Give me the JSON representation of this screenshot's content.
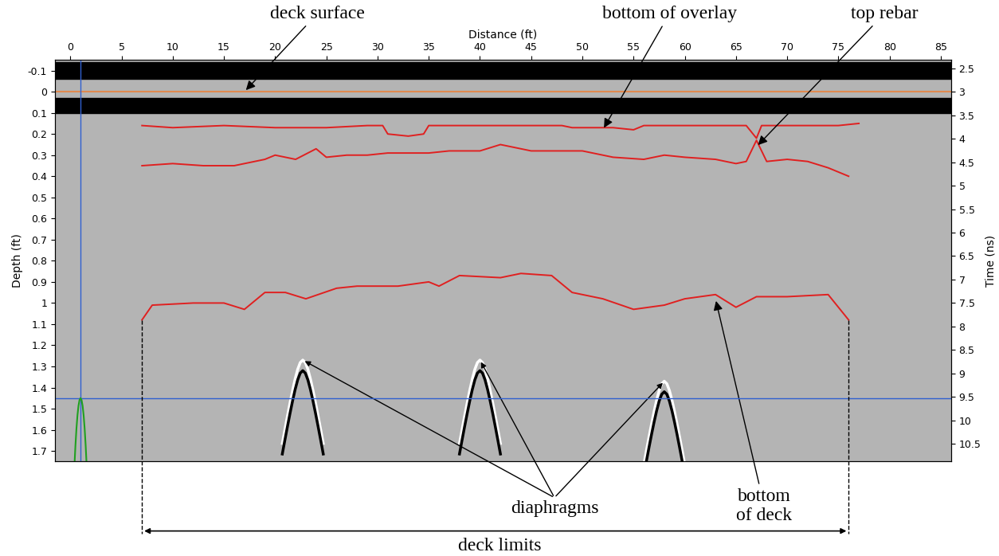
{
  "chart_data": {
    "type": "radargram",
    "xlabel": "Distance (ft)",
    "ylabel": "Depth (ft)",
    "y2label": "Time (ns)",
    "xlim": [
      -1.5,
      86
    ],
    "xticks": [
      0,
      5,
      10,
      15,
      20,
      25,
      30,
      35,
      40,
      45,
      50,
      55,
      60,
      65,
      70,
      75,
      80,
      85
    ],
    "ylim": [
      1.75,
      -0.15
    ],
    "yticks": [
      -0.1,
      0,
      0.1,
      0.2,
      0.3,
      0.4,
      0.5,
      0.6,
      0.7,
      0.8,
      0.9,
      1,
      1.1,
      1.2,
      1.3,
      1.4,
      1.5,
      1.6,
      1.7
    ],
    "y2lim": [
      10.875,
      2.325
    ],
    "y2ticks": [
      2.5,
      3,
      3.5,
      4,
      4.5,
      5,
      5.5,
      6,
      6.5,
      7,
      7.5,
      8,
      8.5,
      9,
      9.5,
      10,
      10.5
    ],
    "grid": false,
    "direct_wave_bands": [
      [
        -0.14,
        -0.06
      ],
      [
        0.03,
        0.1
      ]
    ],
    "deck_surface": {
      "name": "deck surface",
      "color": "#e08a50",
      "depth": 0,
      "label_x": 17
    },
    "series": [
      {
        "name": "bottom of overlay",
        "color": "#e02020",
        "label_x": 52,
        "label_depth": 0.18,
        "x": [
          7,
          10,
          15,
          20,
          25,
          29,
          30.5,
          31,
          33,
          34.5,
          35,
          40,
          45,
          48,
          49,
          53,
          55,
          56,
          60,
          66,
          67,
          67.5,
          70,
          75,
          77
        ],
        "values": [
          0.16,
          0.17,
          0.16,
          0.17,
          0.17,
          0.16,
          0.16,
          0.2,
          0.21,
          0.2,
          0.16,
          0.16,
          0.16,
          0.16,
          0.17,
          0.17,
          0.18,
          0.16,
          0.16,
          0.16,
          0.22,
          0.16,
          0.16,
          0.16,
          0.15
        ]
      },
      {
        "name": "top rebar",
        "color": "#e02020",
        "label_x": 67,
        "label_depth": 0.26,
        "x": [
          7,
          10,
          13,
          16,
          19,
          20,
          22,
          24,
          25,
          27,
          29,
          31,
          35,
          37,
          40,
          42,
          45,
          48,
          50,
          53,
          56,
          58,
          60,
          63,
          65,
          66,
          67,
          68,
          70,
          72,
          74,
          76
        ],
        "values": [
          0.35,
          0.34,
          0.35,
          0.35,
          0.32,
          0.3,
          0.32,
          0.27,
          0.31,
          0.3,
          0.3,
          0.29,
          0.29,
          0.28,
          0.28,
          0.25,
          0.28,
          0.28,
          0.28,
          0.31,
          0.32,
          0.3,
          0.31,
          0.32,
          0.34,
          0.33,
          0.23,
          0.33,
          0.32,
          0.33,
          0.36,
          0.4
        ]
      },
      {
        "name": "bottom of deck",
        "color": "#e02020",
        "label_x": 63,
        "label_depth": 0.98,
        "x": [
          7,
          8,
          12,
          15,
          17,
          19,
          21,
          23,
          26,
          28,
          32,
          35,
          36,
          38,
          42,
          44,
          47,
          49,
          52,
          55,
          58,
          60,
          63,
          65,
          67,
          70,
          74,
          76
        ],
        "values": [
          1.08,
          1.01,
          1.0,
          1.0,
          1.03,
          0.95,
          0.95,
          0.98,
          0.93,
          0.92,
          0.92,
          0.9,
          0.92,
          0.87,
          0.88,
          0.86,
          0.87,
          0.95,
          0.98,
          1.03,
          1.01,
          0.98,
          0.96,
          1.02,
          0.97,
          0.97,
          0.96,
          1.08
        ]
      }
    ],
    "diaphragms": {
      "name": "diaphragms",
      "x": [
        22.7,
        40,
        58
      ],
      "depth": [
        1.27,
        1.27,
        1.37
      ]
    },
    "deck_limits": {
      "name": "deck limits",
      "x": [
        7,
        76
      ]
    },
    "bottom_of_deck_label": "bottom\nof deck",
    "cursor": {
      "color": "#3060d0",
      "distance": 1,
      "depth": 1.45
    }
  }
}
